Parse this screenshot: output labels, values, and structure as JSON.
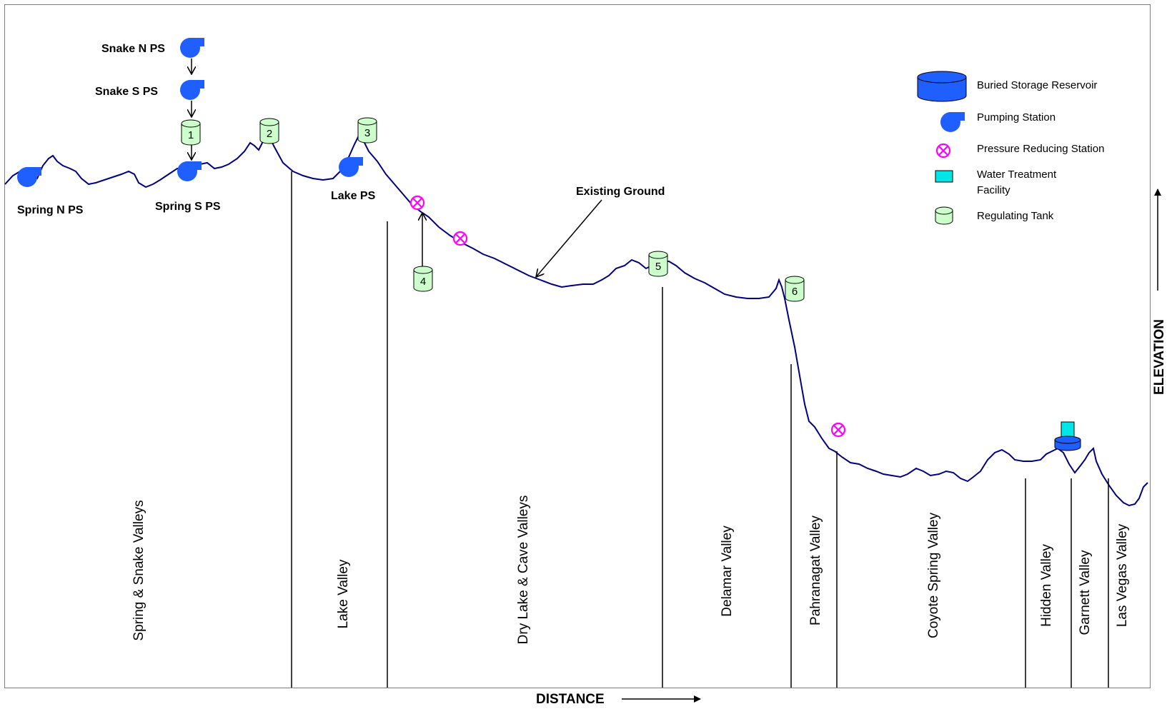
{
  "axes": {
    "x_label": "DISTANCE",
    "y_label": "ELEVATION"
  },
  "ground_label": "Existing Ground",
  "valleys": [
    "Spring & Snake Valleys",
    "Lake Valley",
    "Dry Lake & Cave Valleys",
    "Delamar Valley",
    "Pahranagat Valley",
    "Coyote Spring Valley",
    "Hidden Valley",
    "Garnett Valley",
    "Las Vegas Valley"
  ],
  "pumping_stations": [
    "Spring N PS",
    "Snake N PS",
    "Snake S PS",
    "Spring S PS",
    "Lake PS"
  ],
  "tanks": [
    "1",
    "2",
    "3",
    "4",
    "5",
    "6"
  ],
  "legend": {
    "reservoir": "Buried Storage  Reservoir",
    "pumping": "Pumping Station",
    "prs": "Pressure Reducing Station",
    "wtf_line1": "Water Treatment",
    "wtf_line2": "Facility",
    "tank": "Regulating Tank"
  },
  "colors": {
    "ground_line": "#000080",
    "pump": "#1F5EFF",
    "tank_fill": "#CCFFCC",
    "prs": "#FF00FF",
    "wtf": "#00E5E5",
    "reservoir": "#1F5EFF"
  },
  "icons": {
    "pump": "pump-icon",
    "tank": "tank-icon",
    "prs": "prs-icon",
    "wtf": "water-treatment-icon",
    "reservoir": "reservoir-icon"
  }
}
